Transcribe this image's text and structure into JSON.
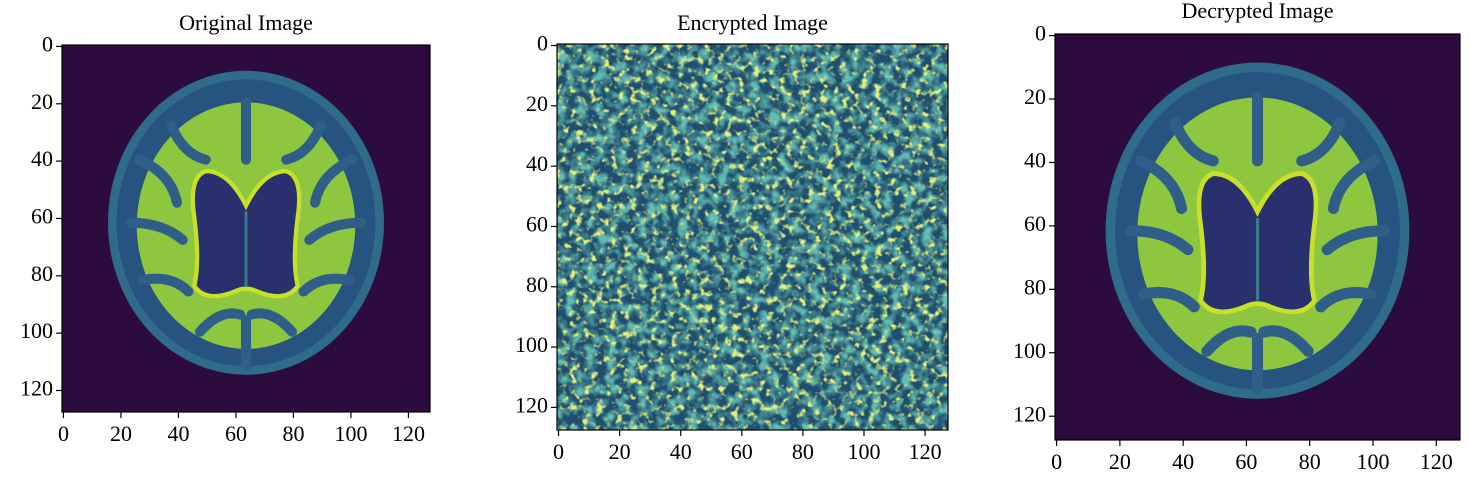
{
  "chart_data": [
    {
      "type": "image",
      "title": "Original Image",
      "xlim": [
        -0.5,
        127.5
      ],
      "ylim": [
        127.5,
        -0.5
      ],
      "xticks": [
        0,
        20,
        40,
        60,
        80,
        100,
        120
      ],
      "yticks": [
        0,
        20,
        40,
        60,
        80,
        100,
        120
      ],
      "image": "brain"
    },
    {
      "type": "image",
      "title": "Encrypted Image",
      "xlim": [
        -0.5,
        127.5
      ],
      "ylim": [
        127.5,
        -0.5
      ],
      "xticks": [
        0,
        20,
        40,
        60,
        80,
        100,
        120
      ],
      "yticks": [
        0,
        20,
        40,
        60,
        80,
        100,
        120
      ],
      "image": "noise"
    },
    {
      "type": "image",
      "title": "Decrypted Image",
      "xlim": [
        -0.5,
        127.5
      ],
      "ylim": [
        127.5,
        -0.5
      ],
      "xticks": [
        0,
        20,
        40,
        60,
        80,
        100,
        120
      ],
      "yticks": [
        0,
        20,
        40,
        60,
        80,
        100,
        120
      ],
      "image": "brain"
    }
  ]
}
